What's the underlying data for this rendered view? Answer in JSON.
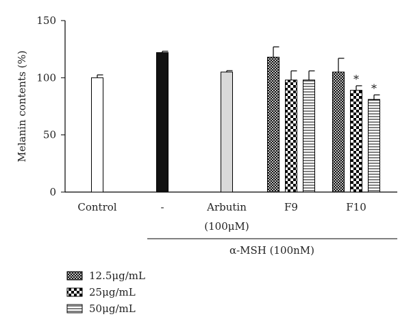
{
  "chart_data": {
    "type": "bar",
    "title": "",
    "xlabel": "",
    "ylabel": "Melanin contents (%)",
    "ylim": [
      0,
      150
    ],
    "yticks": [
      0,
      50,
      100,
      150
    ],
    "grid": false,
    "legend_placement": "bottom-left",
    "groups": [
      {
        "label": "Control",
        "sublabel": "",
        "bars": [
          {
            "value": 100,
            "error": 2.5,
            "fill": "white",
            "star": ""
          }
        ]
      },
      {
        "label": "-",
        "sublabel": "",
        "bars": [
          {
            "value": 122,
            "error": 1.2,
            "fill": "black",
            "star": ""
          }
        ]
      },
      {
        "label": "Arbutin",
        "sublabel": "(100μM)",
        "bars": [
          {
            "value": 105,
            "error": 1.2,
            "fill": "gray",
            "star": ""
          }
        ]
      },
      {
        "label": "F9",
        "sublabel": "",
        "bars": [
          {
            "value": 118,
            "error": 9,
            "fill": "crosshatch",
            "star": ""
          },
          {
            "value": 98,
            "error": 8,
            "fill": "checker",
            "star": ""
          },
          {
            "value": 98,
            "error": 8,
            "fill": "hlines",
            "star": ""
          }
        ]
      },
      {
        "label": "F10",
        "sublabel": "",
        "bars": [
          {
            "value": 105,
            "error": 12,
            "fill": "crosshatch",
            "star": ""
          },
          {
            "value": 89,
            "error": 4,
            "fill": "checker",
            "star": "*"
          },
          {
            "value": 81,
            "error": 4,
            "fill": "hlines",
            "star": "*"
          }
        ]
      }
    ],
    "bracket_label": "α-MSH (100nM)",
    "legend": [
      {
        "name": "12.5μg/mL",
        "fill": "crosshatch"
      },
      {
        "name": "25μg/mL",
        "fill": "checker"
      },
      {
        "name": "50μg/mL",
        "fill": "hlines"
      }
    ]
  }
}
